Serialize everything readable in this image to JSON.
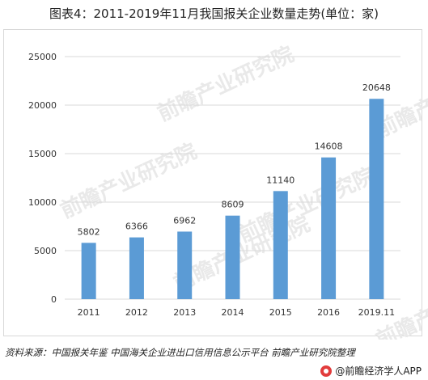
{
  "title": "图表4：2011-2019年11月我国报关企业数量走势(单位：家)",
  "source": "资料来源：中国报关年鉴 中国海关企业进出口信用信息公示平台 前瞻产业研究院整理",
  "brand": "@前瞻经济学人APP",
  "watermark": "前瞻产业研究院",
  "colors": {
    "bar": "#5b9bd5",
    "grid": "#d9d9d9",
    "axis_text": "#333333"
  },
  "chart_data": {
    "type": "bar",
    "title": "图表4：2011-2019年11月我国报关企业数量走势(单位：家)",
    "xlabel": "",
    "ylabel": "",
    "categories": [
      "2011",
      "2012",
      "2013",
      "2014",
      "2015",
      "2016",
      "2019.11"
    ],
    "values": [
      5802,
      6366,
      6962,
      8609,
      11140,
      14608,
      20648
    ],
    "ylim": [
      0,
      25000
    ],
    "yticks": [
      "0",
      "5000",
      "10000",
      "15000",
      "20000",
      "25000"
    ],
    "grid": true,
    "legend": "none"
  }
}
